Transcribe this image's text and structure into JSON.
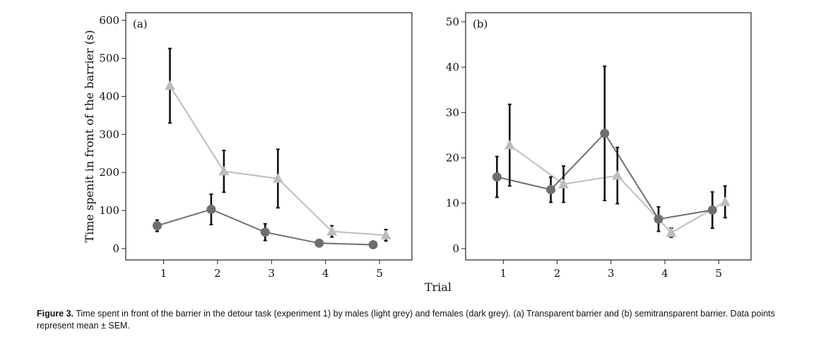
{
  "chart_data": [
    {
      "type": "line",
      "panel_label": "(a)",
      "x": [
        1,
        2,
        3,
        4,
        5
      ],
      "xlim": [
        0.3,
        5.6
      ],
      "ylim": [
        -30,
        620
      ],
      "yticks": [
        0,
        100,
        200,
        300,
        400,
        500,
        600
      ],
      "ylabel": "Time spenit in front of the barrier (s)",
      "series": [
        {
          "color": "#bdbdbd",
          "marker": "triangle",
          "values": [
            428,
            203,
            184,
            45,
            35
          ],
          "err": [
            98,
            55,
            77,
            15,
            15
          ]
        },
        {
          "color": "#6e6e6e",
          "marker": "circle",
          "values": [
            60,
            103,
            43,
            14,
            10
          ],
          "err": [
            15,
            40,
            22,
            5,
            4
          ]
        }
      ]
    },
    {
      "type": "line",
      "panel_label": "(b)",
      "x": [
        1,
        2,
        3,
        4,
        5
      ],
      "xlim": [
        0.3,
        5.6
      ],
      "ylim": [
        -2.5,
        52
      ],
      "yticks": [
        0,
        10,
        20,
        30,
        40,
        50
      ],
      "ylabel": "",
      "series": [
        {
          "color": "#bdbdbd",
          "marker": "triangle",
          "values": [
            22.8,
            14.2,
            16.1,
            3.5,
            10.3
          ],
          "err": [
            9,
            4,
            6.2,
            1,
            3.5
          ]
        },
        {
          "color": "#6e6e6e",
          "marker": "circle",
          "values": [
            15.8,
            13,
            25.4,
            6.5,
            8.5
          ],
          "err": [
            4.5,
            2.8,
            14.8,
            2.7,
            4
          ]
        }
      ]
    }
  ],
  "xlabel": "Trial",
  "caption": {
    "label": "Figure 3.",
    "text": "Time spent in front of the barrier in the detour task (experiment 1) by males (light grey) and females (dark grey). (a) Transparent barrier and (b) semitransparent barrier. Data points represent mean ± SEM."
  }
}
